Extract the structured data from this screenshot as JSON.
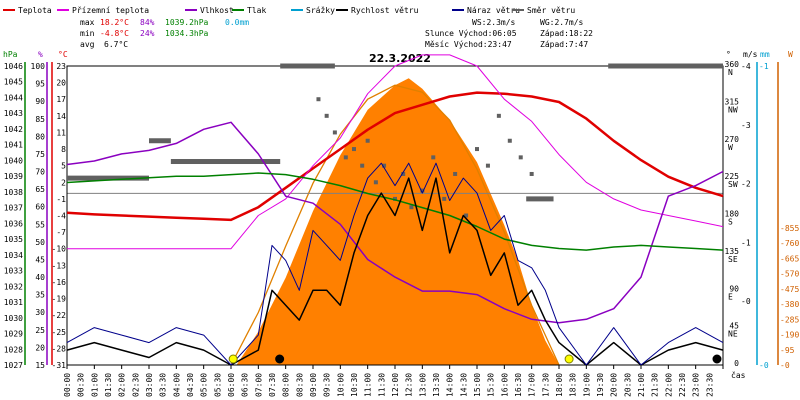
{
  "chart_data": {
    "type": "line",
    "title": "22.3.2022",
    "legend": [
      {
        "name": "Teplota",
        "color": "#e00000"
      },
      {
        "name": "Přízemní teplota",
        "color": "#e000e0"
      },
      {
        "name": "Vlhkost",
        "color": "#8a00c0"
      },
      {
        "name": "Tlak",
        "color": "#008000"
      },
      {
        "name": "Srážky",
        "color": "#00a0d0"
      },
      {
        "name": "Rychlost větru",
        "color": "#000000"
      },
      {
        "name": "Náraz větru",
        "color": "#00008b"
      },
      {
        "name": "Směr větru",
        "color": "#606060"
      }
    ],
    "stats": {
      "max": {
        "label": "max",
        "temp": "18.2°C",
        "hum": "84%",
        "press": "1039.2hPa",
        "rain": "0.0mm"
      },
      "min": {
        "label": "min",
        "temp": "-4.8°C",
        "hum": "24%",
        "press": "1034.3hPa"
      },
      "avg": {
        "label": "avg",
        "temp": "6.7°C"
      }
    },
    "info": {
      "ws": "WS:2.3m/s",
      "wg": "WG:2.7m/s",
      "sun_rise": "Slunce Východ:06:05",
      "sun_set": "Západ:18:22",
      "moon_rise": "Měsíc  Východ:23:47",
      "moon_set": "Západ:7:47"
    },
    "axis_units": {
      "press": "hPa",
      "hum": "%",
      "temp": "°C",
      "dir": "°",
      "wind": "m/s",
      "rain": "mm",
      "solar": "W",
      "time": "čas"
    },
    "y_press_ticks": [
      "1046",
      "1045",
      "1044",
      "1043",
      "1042",
      "1041",
      "1040",
      "1039",
      "1038",
      "1037",
      "1036",
      "1035",
      "1034",
      "1033",
      "1032",
      "1031",
      "1030",
      "1029",
      "1028",
      "1027"
    ],
    "y_hum_ticks": [
      "100",
      "95",
      "90",
      "85",
      "80",
      "75",
      "70",
      "65",
      "60",
      "55",
      "50",
      "45",
      "40",
      "35",
      "30",
      "25",
      "20",
      "15"
    ],
    "y_temp_ticks": [
      "23",
      "20",
      "17",
      "14",
      "11",
      "8",
      "5",
      "2",
      "-1",
      "-4",
      "-7",
      "-10",
      "-13",
      "-16",
      "-19",
      "-22",
      "-25",
      "-28",
      "-31"
    ],
    "y_dir_ticks": [
      {
        "deg": "360",
        "dir": "N"
      },
      {
        "deg": "315",
        "dir": "NW"
      },
      {
        "deg": "270",
        "dir": "W"
      },
      {
        "deg": "225",
        "dir": "SW"
      },
      {
        "deg": "180",
        "dir": "S"
      },
      {
        "deg": "135",
        "dir": "SE"
      },
      {
        "deg": "90",
        "dir": "E"
      },
      {
        "deg": "45",
        "dir": "NE"
      },
      {
        "deg": "0",
        "dir": ""
      }
    ],
    "y_wind_ticks": [
      "4",
      "3",
      "2",
      "1",
      "0"
    ],
    "y_rain_ticks": [
      "1",
      "0"
    ],
    "y_solar_ticks": [
      "855",
      "760",
      "665",
      "570",
      "475",
      "380",
      "285",
      "190",
      "95",
      "0"
    ],
    "x_ticks": [
      "00:00",
      "00:30",
      "01:00",
      "01:30",
      "02:00",
      "02:30",
      "03:00",
      "03:30",
      "04:00",
      "04:30",
      "05:00",
      "05:30",
      "06:00",
      "06:30",
      "07:00",
      "07:30",
      "08:00",
      "08:30",
      "09:00",
      "09:30",
      "10:00",
      "10:30",
      "11:00",
      "11:30",
      "12:00",
      "12:30",
      "13:00",
      "13:30",
      "14:00",
      "14:30",
      "15:00",
      "15:30",
      "16:00",
      "16:30",
      "17:00",
      "17:30",
      "18:00",
      "18:30",
      "19:00",
      "19:30",
      "20:00",
      "20:30",
      "21:00",
      "21:30",
      "22:00",
      "22:30",
      "23:00",
      "23:30"
    ],
    "x_hours": [
      0,
      1,
      2,
      3,
      4,
      5,
      6,
      7,
      8,
      9,
      10,
      11,
      12,
      13,
      14,
      15,
      16,
      17,
      18,
      19,
      20,
      21,
      22,
      23,
      24
    ],
    "series": [
      {
        "name": "Teplota",
        "axis": "temp",
        "color": "#e00000",
        "x": [
          0,
          1,
          2,
          3,
          4,
          5,
          6,
          7,
          8,
          9,
          10,
          11,
          12,
          13,
          14,
          15,
          16,
          17,
          18,
          19,
          20,
          21,
          22,
          23,
          24
        ],
        "values": [
          -3.5,
          -3.8,
          -4.0,
          -4.2,
          -4.4,
          -4.6,
          -4.8,
          -2.5,
          1.0,
          4.5,
          8.0,
          11.5,
          14.5,
          16.0,
          17.5,
          18.2,
          18.0,
          17.5,
          16.5,
          13.5,
          9.5,
          6.0,
          3.0,
          1.0,
          -0.5
        ]
      },
      {
        "name": "Přízemní teplota",
        "axis": "temp",
        "color": "#e000e0",
        "x": [
          0,
          1,
          2,
          3,
          4,
          5,
          6,
          7,
          8,
          9,
          10,
          11,
          12,
          13,
          14,
          15,
          16,
          17,
          18,
          19,
          20,
          21,
          22,
          23,
          24
        ],
        "values": [
          -10,
          -10,
          -10,
          -10,
          -10,
          -10,
          -10,
          -4,
          -1,
          5,
          10,
          18,
          23,
          25,
          25,
          23,
          17,
          13,
          7,
          2,
          -1,
          -3,
          -4,
          -5,
          -6
        ]
      },
      {
        "name": "Vlhkost",
        "axis": "hum",
        "color": "#8a00c0",
        "x": [
          0,
          1,
          2,
          3,
          4,
          5,
          6,
          7,
          8,
          9,
          10,
          11,
          12,
          13,
          14,
          15,
          16,
          17,
          18,
          19,
          20,
          21,
          22,
          23,
          24
        ],
        "values": [
          72,
          73,
          75,
          76,
          78,
          82,
          84,
          75,
          63,
          61,
          55,
          45,
          40,
          36,
          36,
          35,
          31,
          28,
          27,
          28,
          31,
          40,
          63,
          66,
          70
        ]
      },
      {
        "name": "Tlak",
        "axis": "press",
        "color": "#008000",
        "x": [
          0,
          1,
          2,
          3,
          4,
          5,
          6,
          7,
          8,
          9,
          10,
          11,
          12,
          13,
          14,
          15,
          16,
          17,
          18,
          19,
          20,
          21,
          22,
          23,
          24
        ],
        "values": [
          1038.6,
          1038.7,
          1038.8,
          1038.9,
          1039.0,
          1039.0,
          1039.1,
          1039.2,
          1039.1,
          1038.8,
          1038.4,
          1037.9,
          1037.5,
          1037.0,
          1036.5,
          1035.8,
          1035.0,
          1034.6,
          1034.4,
          1034.3,
          1034.5,
          1034.6,
          1034.5,
          1034.4,
          1034.3
        ]
      },
      {
        "name": "Rychlost větru",
        "axis": "wind",
        "color": "#000000",
        "x": [
          0,
          1,
          2,
          3,
          4,
          5,
          6,
          7,
          7.5,
          8,
          8.5,
          9,
          9.5,
          10,
          10.5,
          11,
          11.5,
          12,
          12.5,
          13,
          13.5,
          14,
          14.5,
          15,
          15.5,
          16,
          16.5,
          17,
          17.5,
          18,
          19,
          20,
          21,
          22,
          23,
          24
        ],
        "values": [
          0.2,
          0.3,
          0.2,
          0.1,
          0.3,
          0.2,
          0.0,
          0.2,
          1.0,
          0.8,
          0.6,
          1.0,
          1.0,
          0.8,
          1.5,
          2.0,
          2.3,
          2.0,
          2.5,
          1.8,
          2.5,
          1.5,
          2.0,
          1.8,
          1.2,
          1.5,
          0.8,
          1.0,
          0.6,
          0.3,
          0.0,
          0.3,
          0.0,
          0.2,
          0.3,
          0.2
        ]
      },
      {
        "name": "Náraz větru",
        "axis": "wind",
        "color": "#00008b",
        "x": [
          0,
          1,
          2,
          3,
          4,
          5,
          6,
          7,
          7.5,
          8,
          8.5,
          9,
          9.5,
          10,
          10.5,
          11,
          11.5,
          12,
          12.5,
          13,
          13.5,
          14,
          14.5,
          15,
          15.5,
          16,
          16.5,
          17,
          17.5,
          18,
          19,
          20,
          21,
          22,
          23,
          24
        ],
        "values": [
          0.3,
          0.5,
          0.4,
          0.3,
          0.5,
          0.4,
          0.0,
          0.4,
          1.6,
          1.4,
          1.0,
          1.8,
          1.6,
          1.4,
          2.0,
          2.5,
          2.7,
          2.4,
          2.7,
          2.3,
          2.7,
          2.2,
          2.5,
          2.3,
          1.8,
          2.0,
          1.4,
          1.3,
          1.0,
          0.5,
          0.0,
          0.5,
          0.0,
          0.3,
          0.5,
          0.3
        ]
      }
    ],
    "solar": {
      "axis": "solar",
      "x": [
        6.2,
        7,
        8,
        9,
        10,
        11,
        12,
        12.5,
        13,
        14,
        15,
        16,
        16.5,
        17,
        17.5,
        18
      ],
      "values": [
        0,
        95,
        250,
        440,
        600,
        730,
        800,
        820,
        790,
        700,
        580,
        400,
        300,
        170,
        70,
        0
      ],
      "theory_x": [
        6,
        7,
        8,
        9,
        10,
        11,
        12,
        13,
        14,
        15,
        16,
        17,
        18
      ],
      "theory": [
        0,
        150,
        340,
        520,
        660,
        760,
        800,
        780,
        700,
        560,
        380,
        170,
        0
      ]
    },
    "wind_dir": {
      "bars": [
        {
          "x0": 0.0,
          "x1": 3.0,
          "deg": 225
        },
        {
          "x0": 3.0,
          "x1": 3.8,
          "deg": 270
        },
        {
          "x0": 3.8,
          "x1": 7.8,
          "deg": 245
        },
        {
          "x0": 7.8,
          "x1": 9.8,
          "deg": 360
        },
        {
          "x0": 16.8,
          "x1": 17.8,
          "deg": 200
        },
        {
          "x0": 19.8,
          "x1": 26.0,
          "deg": 360
        },
        {
          "x0": 26.5,
          "x1": 27.8,
          "deg": 245
        }
      ],
      "dots_x": [
        9.2,
        9.5,
        9.8,
        10.2,
        10.5,
        10.8,
        11.0,
        11.3,
        11.6,
        12.0,
        12.3,
        12.6,
        13.0,
        13.4,
        13.8,
        14.2,
        14.6,
        15.0,
        15.4,
        15.8,
        16.2,
        16.6,
        17.0
      ],
      "dots_deg": [
        320,
        300,
        280,
        250,
        260,
        240,
        270,
        220,
        240,
        200,
        230,
        190,
        210,
        250,
        200,
        230,
        180,
        260,
        240,
        300,
        270,
        250,
        230
      ]
    },
    "sun_markers": [
      {
        "type": "rise",
        "x": 6.08
      },
      {
        "type": "set",
        "x": 18.37
      }
    ],
    "moon_markers": [
      {
        "type": "set",
        "x": 7.78
      },
      {
        "type": "rise",
        "x": 23.78
      }
    ]
  }
}
